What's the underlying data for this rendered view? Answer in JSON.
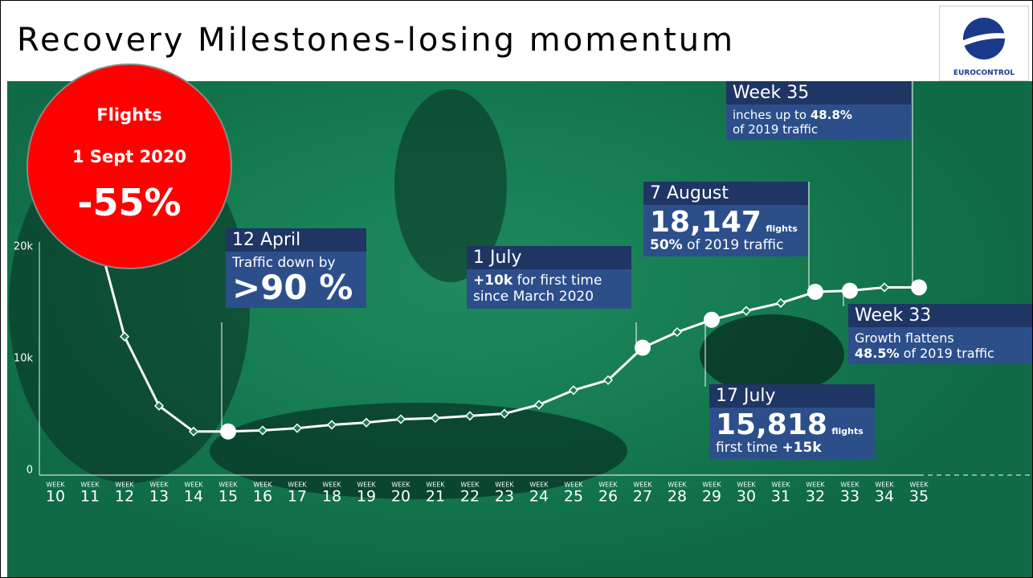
{
  "title": "Recovery Milestones-losing momentum",
  "logo_text": "EUROCONTROL",
  "badge": {
    "line1": "Flights",
    "line2": "1 Sept 2020",
    "line3": "-55%"
  },
  "annotations": {
    "april": {
      "head": "12 April",
      "line1": "Traffic down by",
      "big": ">90 %"
    },
    "july1": {
      "head": "1 July",
      "bold1": "+10k",
      "rest1": " for first time",
      "line2": "since March 2020"
    },
    "august": {
      "head": "7 August",
      "big": "18,147",
      "unit": "flights",
      "bold2": "50%",
      "rest2": " of 2019 traffic"
    },
    "week35": {
      "head": "Week 35",
      "rest1": "inches up to ",
      "bold1": "48.8%",
      "line2": "of 2019 traffic"
    },
    "week33": {
      "head": "Week 33",
      "line1": "Growth flattens",
      "bold2": "48.5%",
      "rest2": " of 2019 traffic"
    },
    "july17": {
      "head": "17 July",
      "big": "15,818",
      "unit": "flights",
      "rest2": "first time ",
      "bold2": "+15k"
    }
  },
  "chart_data": {
    "type": "line",
    "x_label_prefix": "WEEK",
    "categories": [
      "10",
      "11",
      "12",
      "13",
      "14",
      "15",
      "16",
      "17",
      "18",
      "19",
      "20",
      "21",
      "22",
      "23",
      "24",
      "25",
      "26",
      "27",
      "28",
      "29",
      "30",
      "31",
      "32",
      "33",
      "34",
      "35"
    ],
    "series": [
      {
        "name": "Flights",
        "color": "#ffffff",
        "values": [
          28000,
          24000,
          12400,
          6200,
          3900,
          3900,
          4000,
          4200,
          4500,
          4700,
          5000,
          5100,
          5300,
          5500,
          6300,
          7600,
          8500,
          11400,
          12800,
          13900,
          14700,
          15400,
          16400,
          16500,
          16800,
          16800
        ],
        "markers": [
          "diamond",
          "diamond",
          "diamond",
          "diamond",
          "diamond",
          "circle",
          "diamond",
          "diamond",
          "diamond",
          "diamond",
          "diamond",
          "diamond",
          "diamond",
          "diamond",
          "diamond",
          "diamond",
          "diamond",
          "circle",
          "diamond",
          "circle",
          "diamond",
          "diamond",
          "circle",
          "circle",
          "diamond",
          "circle"
        ]
      }
    ],
    "ylim": [
      0,
      30000
    ],
    "yticks": [
      0,
      {
        "value": 10000,
        "label": "10k"
      },
      {
        "value": 20000,
        "label": "20k"
      }
    ],
    "grid": false
  }
}
